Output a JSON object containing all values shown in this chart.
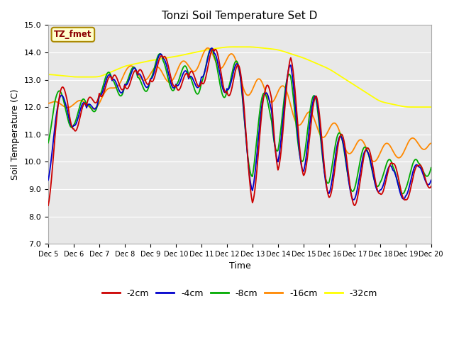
{
  "title": "Tonzi Soil Temperature Set D",
  "xlabel": "Time",
  "ylabel": "Soil Temperature (C)",
  "ylim": [
    7.0,
    15.0
  ],
  "xlim_hours": [
    0,
    360
  ],
  "annotation": "TZ_fmet",
  "bg_color": "#e8e8e8",
  "series_labels": [
    "-2cm",
    "-4cm",
    "-8cm",
    "-16cm",
    "-32cm"
  ],
  "legend_colors": [
    "#cc0000",
    "#0000cc",
    "#00aa00",
    "#ff8800",
    "#ffff00"
  ],
  "xtick_labels": [
    "Dec 5",
    "Dec 6",
    "Dec 7",
    "Dec 8",
    "Dec 9",
    "Dec 10",
    "Dec 11",
    "Dec 12",
    "Dec 13",
    "Dec 14",
    "Dec 15",
    "Dec 16",
    "Dec 17",
    "Dec 18",
    "Dec 19",
    "Dec 20"
  ]
}
